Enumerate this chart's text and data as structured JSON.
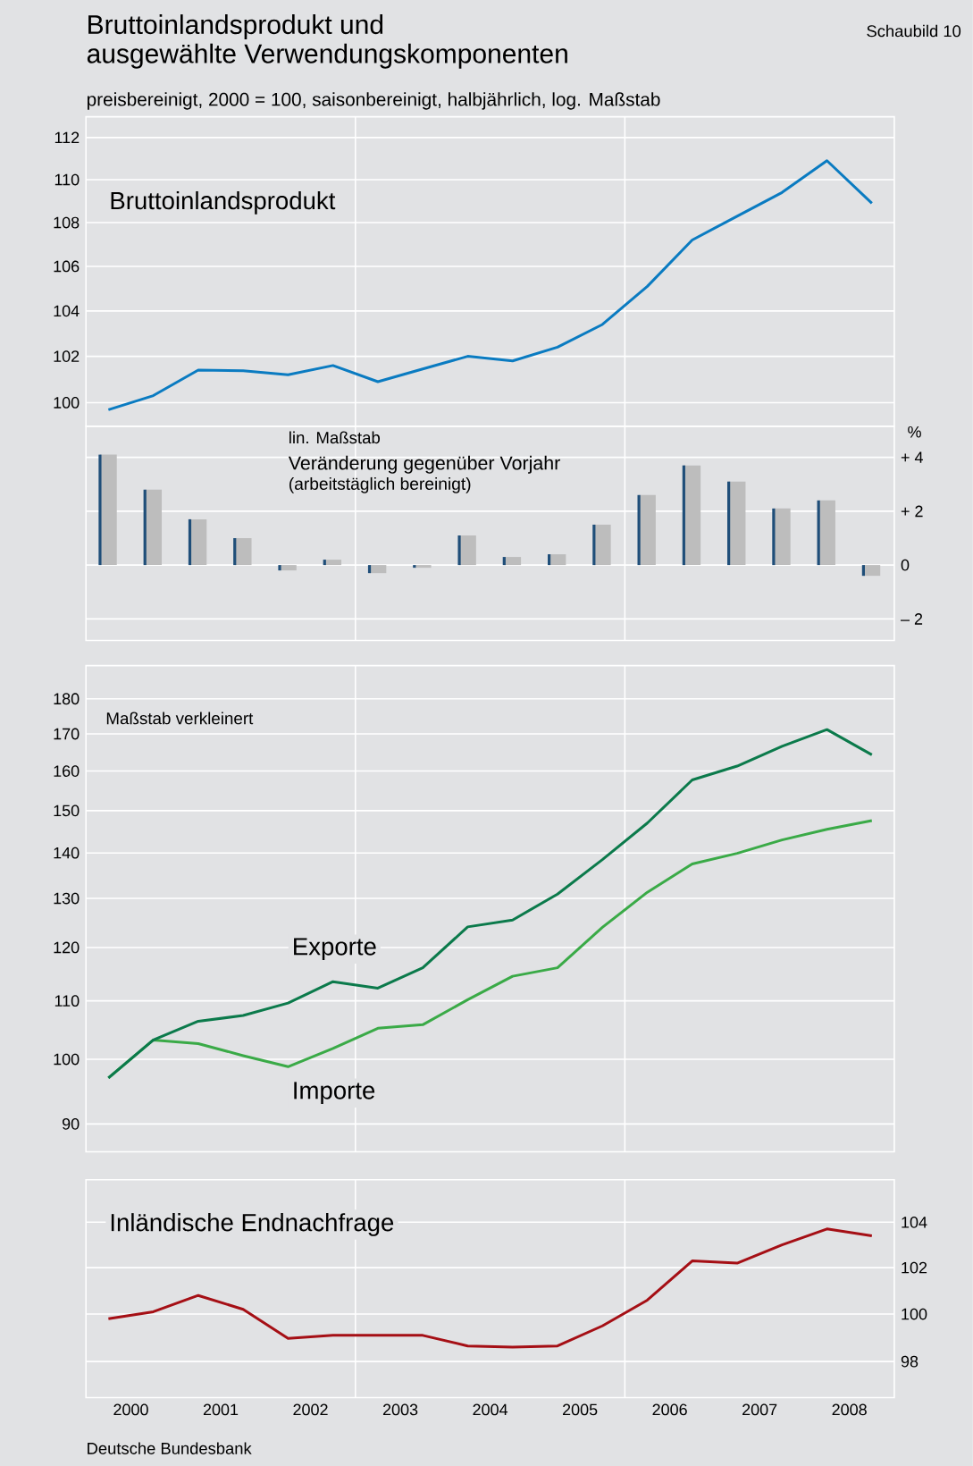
{
  "chart_data": [
    {
      "type": "line",
      "title": "Bruttoinlandsprodukt und ausgewählte Verwendungskomponenten",
      "subtitle": "preisbereinigt, 2000 = 100, saisonbereinigt, halbjährlich, log. Maßstab",
      "annotations": [
        "Schaubild 10"
      ],
      "log": true,
      "grid": "y",
      "tick_labels": "y",
      "x": [
        2000.25,
        2000.75,
        2001.25,
        2001.75,
        2002.25,
        2002.75,
        2003.25,
        2003.75,
        2004.25,
        2004.75,
        2005.25,
        2005.75,
        2006.25,
        2006.75,
        2007.25,
        2007.75,
        2008.25,
        2008.75
      ],
      "xlim": [
        2000,
        2009
      ],
      "ylim": [
        99,
        113
      ],
      "yticks": [
        100,
        102,
        104,
        106,
        108,
        110,
        112
      ],
      "ref_lines": [
        {
          "axis": "x",
          "value": 2003,
          "color": "#ffffff"
        },
        {
          "axis": "x",
          "value": 2006,
          "color": "#ffffff"
        }
      ],
      "series": [
        {
          "name": "Bruttoinlandsprodukt",
          "color": "#0a7bc1",
          "values": [
            99.7,
            100.3,
            101.4,
            101.37,
            101.2,
            101.6,
            100.9,
            101.45,
            102.0,
            101.8,
            102.4,
            103.4,
            105.1,
            107.2,
            108.3,
            109.4,
            110.9,
            108.9
          ]
        }
      ]
    },
    {
      "type": "bar",
      "ylabel": "%",
      "annotations": [
        "lin. Maßstab",
        "Veränderung gegenüber Vorjahr",
        "(arbeitstäglich bereinigt)"
      ],
      "grid": "y",
      "tick_labels": "y",
      "x": [
        2000.25,
        2000.75,
        2001.25,
        2001.75,
        2002.25,
        2002.75,
        2003.25,
        2003.75,
        2004.25,
        2004.75,
        2005.25,
        2005.75,
        2006.25,
        2006.75,
        2007.25,
        2007.75,
        2008.25,
        2008.75
      ],
      "xlim": [
        2000,
        2009
      ],
      "ylim": [
        -2.8,
        5.15
      ],
      "yticks": [
        {
          "value": -2,
          "label": "– 2"
        },
        0,
        {
          "value": 2,
          "label": "+ 2"
        },
        {
          "value": 4,
          "label": "+ 4"
        }
      ],
      "ref_lines": [
        {
          "axis": "x",
          "value": 2003,
          "color": "#ffffff"
        },
        {
          "axis": "x",
          "value": 2006,
          "color": "#ffffff"
        }
      ],
      "series": [
        {
          "color": "#bdbdbd",
          "values": [
            4.1,
            2.8,
            1.7,
            1.0,
            -0.2,
            0.2,
            -0.3,
            -0.1,
            1.1,
            0.3,
            0.4,
            1.5,
            2.6,
            3.7,
            3.1,
            2.1,
            2.4,
            -0.4
          ]
        },
        {
          "color": "#1f4e79",
          "values": [
            4.1,
            2.8,
            1.7,
            1.0,
            -0.2,
            0.2,
            -0.3,
            -0.1,
            1.1,
            0.3,
            0.4,
            1.5,
            2.6,
            3.7,
            3.1,
            2.1,
            2.4,
            -0.4
          ]
        }
      ]
    },
    {
      "type": "line",
      "annotations": [
        "Maßstab verkleinert"
      ],
      "log": true,
      "grid": "y",
      "tick_labels": "y",
      "x": [
        2000.25,
        2000.75,
        2001.25,
        2001.75,
        2002.25,
        2002.75,
        2003.25,
        2003.75,
        2004.25,
        2004.75,
        2005.25,
        2005.75,
        2006.25,
        2006.75,
        2007.25,
        2007.75,
        2008.25,
        2008.75
      ],
      "xlim": [
        2000,
        2009
      ],
      "ylim": [
        86,
        190
      ],
      "yticks": [
        90,
        100,
        110,
        120,
        130,
        140,
        150,
        160,
        170,
        180
      ],
      "ref_lines": [
        {
          "axis": "x",
          "value": 2003,
          "color": "#ffffff"
        },
        {
          "axis": "x",
          "value": 2006,
          "color": "#ffffff"
        }
      ],
      "series": [
        {
          "name": "Importe",
          "color": "#3aaa47",
          "values": [
            97.0,
            103.2,
            102.6,
            100.6,
            98.8,
            101.8,
            105.2,
            105.8,
            110.2,
            114.5,
            116.1,
            124.0,
            131.3,
            137.5,
            139.9,
            143.0,
            145.5,
            147.6
          ]
        },
        {
          "name": "Exporte",
          "color": "#0b7a4b",
          "values": [
            97.0,
            103.2,
            106.4,
            107.4,
            109.6,
            113.5,
            112.3,
            116.1,
            124.1,
            125.5,
            130.9,
            138.5,
            147.0,
            157.7,
            161.3,
            166.6,
            171.2,
            164.3
          ]
        }
      ]
    },
    {
      "type": "line",
      "annotations": [
        "Deutsche Bundesbank"
      ],
      "log": true,
      "grid": "y",
      "x": [
        2000.25,
        2000.75,
        2001.25,
        2001.75,
        2002.25,
        2002.75,
        2003.25,
        2003.75,
        2004.25,
        2004.75,
        2005.25,
        2005.75,
        2006.25,
        2006.75,
        2007.25,
        2007.75,
        2008.25,
        2008.75
      ],
      "xlim": [
        2000,
        2009
      ],
      "xticks": [
        {
          "value": 2000.5,
          "label": "2000"
        },
        {
          "value": 2001.5,
          "label": "2001"
        },
        {
          "value": 2002.5,
          "label": "2002"
        },
        {
          "value": 2003.5,
          "label": "2003"
        },
        {
          "value": 2004.5,
          "label": "2004"
        },
        {
          "value": 2005.5,
          "label": "2005"
        },
        {
          "value": 2006.5,
          "label": "2006"
        },
        {
          "value": 2007.5,
          "label": "2007"
        },
        {
          "value": 2008.5,
          "label": "2008"
        }
      ],
      "ylim": [
        96.5,
        105.9
      ],
      "yticks": [
        98,
        100,
        102,
        104
      ],
      "ref_lines": [
        {
          "axis": "x",
          "value": 2003,
          "color": "#ffffff"
        },
        {
          "axis": "x",
          "value": 2006,
          "color": "#ffffff"
        }
      ],
      "series": [
        {
          "name": "Inländische Endnachfrage",
          "color": "#a50f15",
          "values": [
            99.8,
            100.1,
            100.8,
            100.2,
            98.97,
            99.1,
            99.1,
            99.1,
            98.65,
            98.6,
            98.65,
            99.5,
            100.6,
            102.3,
            102.2,
            103.0,
            103.7,
            103.4
          ]
        }
      ]
    }
  ]
}
